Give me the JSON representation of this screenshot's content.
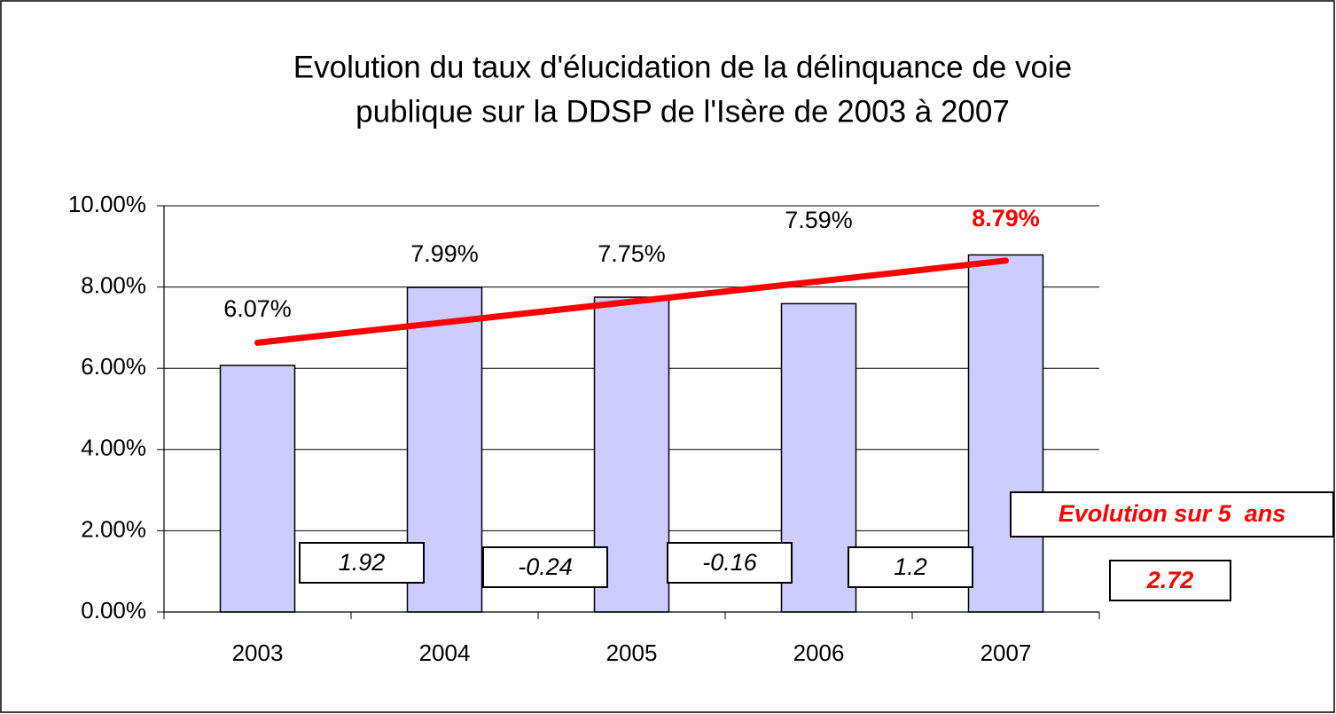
{
  "chart_data": {
    "type": "bar",
    "title": [
      "Evolution du taux d'élucidation de la délinquance de voie",
      "publique sur la DDSP de l'Isère de 2003 à 2007"
    ],
    "categories": [
      "2003",
      "2004",
      "2005",
      "2006",
      "2007"
    ],
    "values": [
      6.07,
      7.99,
      7.75,
      7.59,
      8.79
    ],
    "value_labels": [
      "6.07%",
      "7.99%",
      "7.75%",
      "7.59%",
      "8.79%"
    ],
    "color": "#ccccff",
    "trend": {
      "color": "#ff0000",
      "values": [
        6.63,
        7.13,
        7.64,
        8.14,
        8.65
      ]
    },
    "ylim": [
      0,
      10
    ],
    "yticks": [
      {
        "value": 0,
        "label": "0.00%"
      },
      {
        "value": 2,
        "label": "2.00%"
      },
      {
        "value": 4,
        "label": "4.00%"
      },
      {
        "value": 6,
        "label": "6.00%"
      },
      {
        "value": 8,
        "label": "8.00%"
      },
      {
        "value": 10,
        "label": "10.00%"
      }
    ],
    "grid": true,
    "differences": [
      1.92,
      -0.24,
      -0.16,
      1.2
    ],
    "summary_label": "Evolution sur 5  ans",
    "summary_value": 2.72
  }
}
